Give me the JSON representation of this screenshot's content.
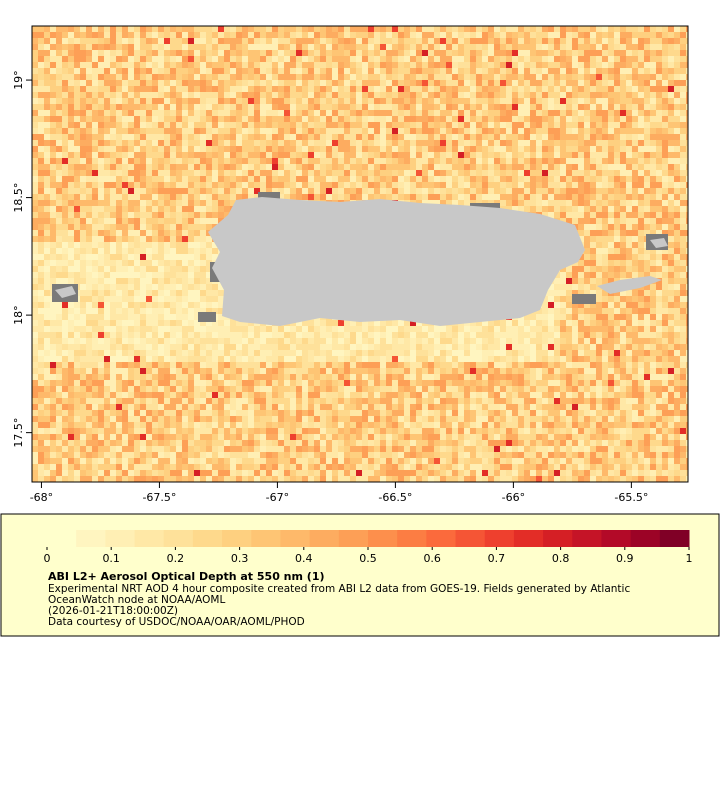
{
  "map": {
    "xlim": [
      -68.04,
      -65.26
    ],
    "ylim": [
      17.29,
      19.23
    ],
    "xticks": [
      {
        "value": -68,
        "label": "-68°"
      },
      {
        "value": -67.5,
        "label": "-67.5°"
      },
      {
        "value": -67,
        "label": "-67°"
      },
      {
        "value": -66.5,
        "label": "-66.5°"
      },
      {
        "value": -66,
        "label": "-66°"
      },
      {
        "value": -65.5,
        "label": "-65.5°"
      }
    ],
    "yticks": [
      {
        "value": 17.5,
        "label": "17.5°"
      },
      {
        "value": 18,
        "label": "18°"
      },
      {
        "value": 18.5,
        "label": "18.5°"
      },
      {
        "value": 19,
        "label": "19°"
      }
    ],
    "land_color": "#c8c8c8",
    "nodata_color": "#7a7a7a"
  },
  "colorbar": {
    "lim": [
      0,
      1
    ],
    "ticks": [
      0,
      0.1,
      0.2,
      0.3,
      0.4,
      0.5,
      0.6,
      0.7,
      0.8,
      0.9,
      1
    ],
    "colors": [
      "#ffffcc",
      "#fff5c0",
      "#ffefb4",
      "#ffe8a6",
      "#fee19a",
      "#fed98c",
      "#fed080",
      "#fec574",
      "#feb96a",
      "#fdac60",
      "#fd9f56",
      "#fd8f4c",
      "#fc7d43",
      "#fb6a3c",
      "#f55535",
      "#ee402e",
      "#e32d27",
      "#d51f25",
      "#c51427",
      "#b30a28",
      "#9c0326",
      "#800026"
    ],
    "title": "ABI L2+ Aerosol Optical Depth at 550 nm (1)",
    "description": [
      "Experimental NRT AOD 4 hour composite created from ABI L2 data from GOES-19. Fields generated by Atlantic",
      "OceanWatch node at NOAA/AOML",
      "(2026-01-21T18:00:00Z)",
      "Data courtesy of USDOC/NOAA/OAR/AOML/PHOD"
    ]
  }
}
